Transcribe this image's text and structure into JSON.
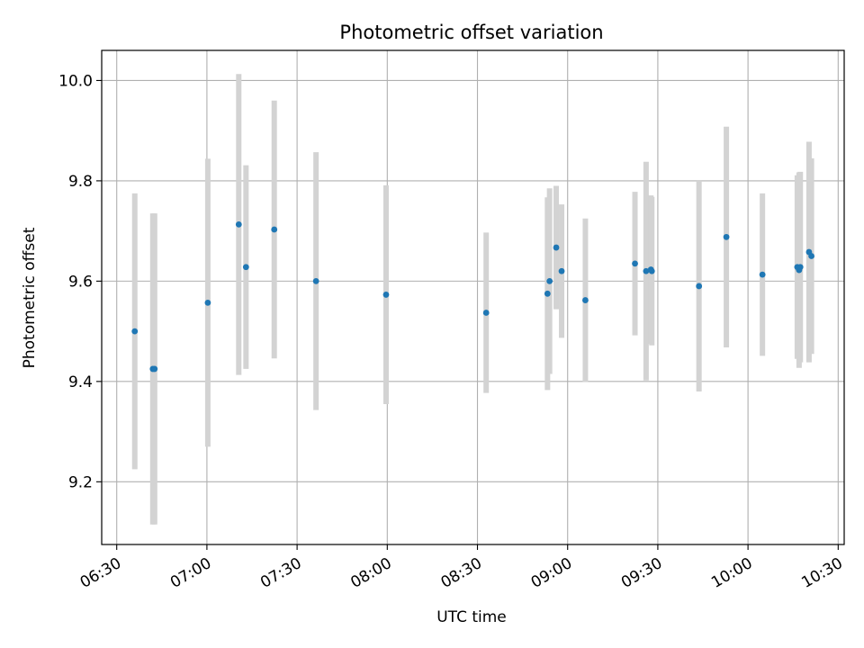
{
  "chart_data": {
    "type": "scatter",
    "title": "Photometric offset variation",
    "xlabel": "UTC time",
    "ylabel": "Photometric offset",
    "grid": true,
    "xlim": [
      "06:25",
      "10:32"
    ],
    "ylim": [
      9.075,
      10.06
    ],
    "x_ticks": [
      "06:30",
      "07:00",
      "07:30",
      "08:00",
      "08:30",
      "09:00",
      "09:30",
      "10:00",
      "10:30"
    ],
    "y_ticks": [
      "9.2",
      "9.4",
      "9.6",
      "9.8",
      "10.0"
    ],
    "colors": {
      "point": "#1f77b4",
      "errorbar": "#d3d3d3",
      "grid": "#b0b0b0"
    },
    "series": [
      {
        "points": [
          {
            "x": "06:36:00",
            "y": 9.5,
            "err": 0.275
          },
          {
            "x": "06:42:00",
            "y": 9.425,
            "err": 0.31
          },
          {
            "x": "06:42:36",
            "y": 9.425,
            "err": 0.31
          },
          {
            "x": "07:00:18",
            "y": 9.557,
            "err": 0.287
          },
          {
            "x": "07:10:36",
            "y": 9.713,
            "err": 0.3
          },
          {
            "x": "07:13:00",
            "y": 9.628,
            "err": 0.203
          },
          {
            "x": "07:22:24",
            "y": 9.703,
            "err": 0.257
          },
          {
            "x": "07:36:18",
            "y": 9.6,
            "err": 0.257
          },
          {
            "x": "07:59:36",
            "y": 9.573,
            "err": 0.218
          },
          {
            "x": "08:32:54",
            "y": 9.537,
            "err": 0.16
          },
          {
            "x": "08:53:18",
            "y": 9.575,
            "err": 0.192
          },
          {
            "x": "08:54:00",
            "y": 9.6,
            "err": 0.185
          },
          {
            "x": "08:56:12",
            "y": 9.667,
            "err": 0.123
          },
          {
            "x": "08:58:00",
            "y": 9.62,
            "err": 0.133
          },
          {
            "x": "09:05:54",
            "y": 9.562,
            "err": 0.163
          },
          {
            "x": "09:22:24",
            "y": 9.635,
            "err": 0.143
          },
          {
            "x": "09:26:06",
            "y": 9.62,
            "err": 0.218
          },
          {
            "x": "09:27:42",
            "y": 9.623,
            "err": 0.148
          },
          {
            "x": "09:28:00",
            "y": 9.62,
            "err": 0.148
          },
          {
            "x": "09:43:42",
            "y": 9.59,
            "err": 0.21
          },
          {
            "x": "09:52:48",
            "y": 9.688,
            "err": 0.22
          },
          {
            "x": "10:04:48",
            "y": 9.613,
            "err": 0.162
          },
          {
            "x": "10:16:24",
            "y": 9.628,
            "err": 0.183
          },
          {
            "x": "10:17:00",
            "y": 9.622,
            "err": 0.195
          },
          {
            "x": "10:17:24",
            "y": 9.628,
            "err": 0.19
          },
          {
            "x": "10:20:18",
            "y": 9.658,
            "err": 0.22
          },
          {
            "x": "10:21:06",
            "y": 9.65,
            "err": 0.195
          }
        ]
      }
    ]
  }
}
